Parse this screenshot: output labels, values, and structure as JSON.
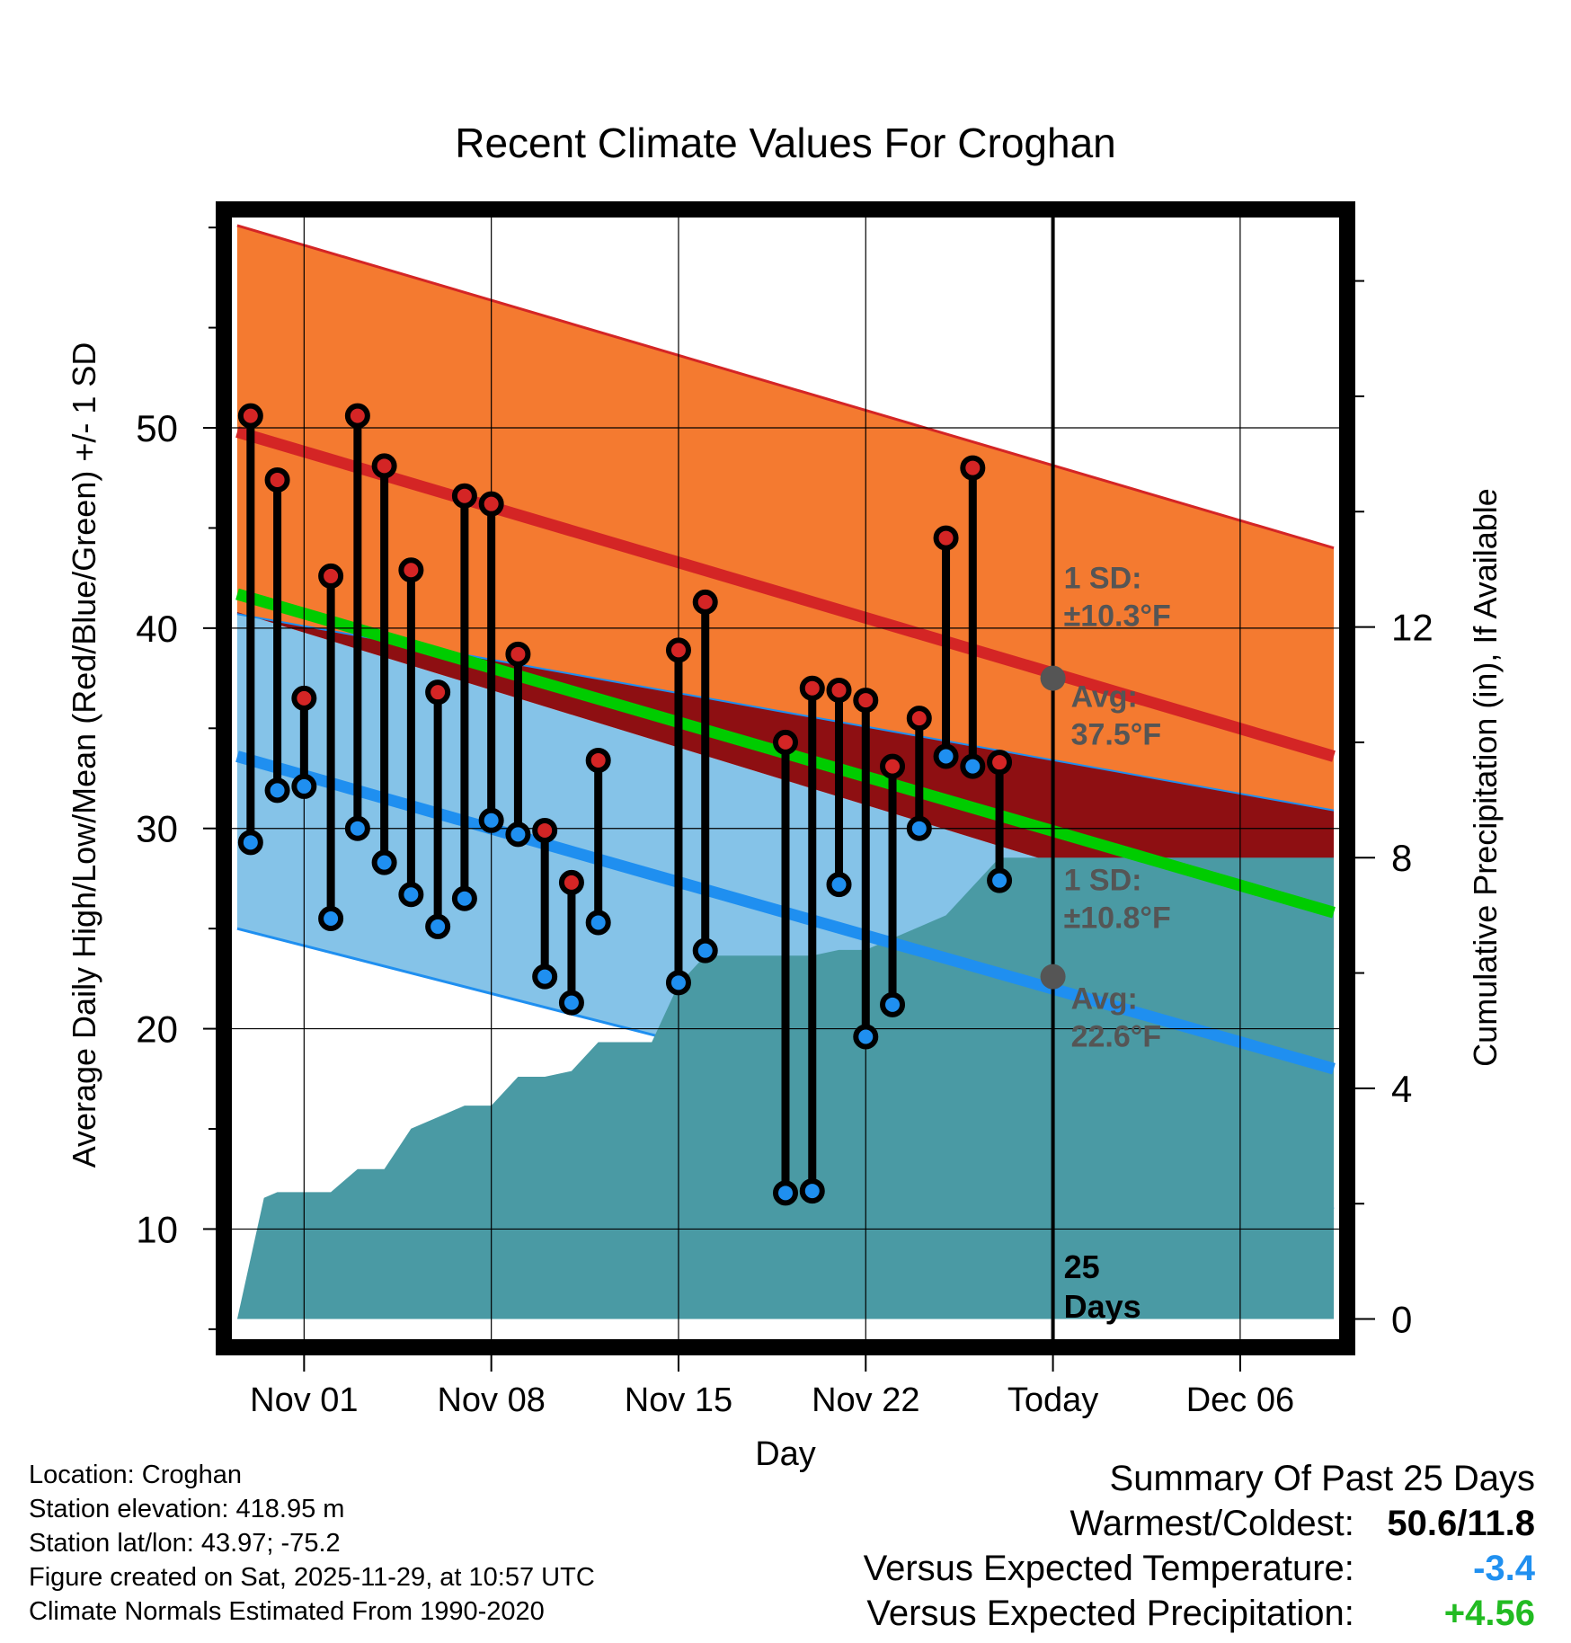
{
  "chart_data": {
    "type": "line",
    "title": "Recent Climate Values For Croghan",
    "xlabel": "Day",
    "ylabel": "Average Daily High/Low/Mean (Red/Blue/Green) +/- 1 SD",
    "y2label": "Cumulative Precipitation (in), If Available",
    "xlim": [
      -2.7,
      38.7
    ],
    "ylim": [
      4.5,
      60.5
    ],
    "y2lim": [
      -0.35,
      19.1
    ],
    "x_ticks": [
      {
        "x": 0,
        "label": "Nov 01"
      },
      {
        "x": 7,
        "label": "Nov 08"
      },
      {
        "x": 14,
        "label": "Nov 15"
      },
      {
        "x": 21,
        "label": "Nov 22"
      },
      {
        "x": 28,
        "label": "Today"
      },
      {
        "x": 35,
        "label": "Dec 06"
      }
    ],
    "y_ticks": [
      10,
      20,
      30,
      40,
      50
    ],
    "y2_ticks": [
      0,
      4,
      8,
      12
    ],
    "normals_x": [
      -2.5,
      38.5
    ],
    "normal_high": [
      49.8,
      33.6
    ],
    "normal_high_upper": [
      60.1,
      44.0
    ],
    "normal_high_lower": [
      40.7,
      30.9
    ],
    "normal_low": [
      33.6,
      18.0
    ],
    "normal_low_upper": [
      40.8,
      24.0
    ],
    "normal_low_lower": [
      25.0,
      11.0
    ],
    "normal_mean": [
      41.7,
      25.8
    ],
    "days": [
      -2,
      -1,
      0,
      1,
      2,
      3,
      4,
      5,
      6,
      7,
      8,
      9,
      10,
      11,
      14,
      15,
      18,
      19,
      20,
      21,
      22,
      23,
      24,
      25,
      26
    ],
    "highs": [
      50.6,
      47.4,
      36.5,
      42.6,
      50.6,
      48.1,
      42.9,
      36.8,
      46.6,
      46.2,
      38.7,
      29.9,
      27.3,
      33.4,
      38.9,
      41.3,
      34.3,
      37.0,
      36.9,
      36.4,
      33.1,
      35.5,
      44.5,
      48.0,
      33.3
    ],
    "lows": [
      29.3,
      31.9,
      32.1,
      25.5,
      30.0,
      28.3,
      26.7,
      25.1,
      26.5,
      30.4,
      29.7,
      22.6,
      21.3,
      25.3,
      22.3,
      23.9,
      11.8,
      11.9,
      27.2,
      19.6,
      21.2,
      30.0,
      33.6,
      33.1,
      27.4
    ],
    "precip_x": [
      -2.5,
      -1.5,
      -1,
      0,
      1,
      2,
      3,
      4,
      5,
      6,
      7,
      8,
      9,
      10,
      11,
      12,
      13,
      14,
      15,
      16,
      17,
      18,
      19,
      20,
      21,
      22,
      23,
      24,
      25,
      26,
      27,
      28,
      38.5
    ],
    "precip_cum": [
      0,
      2.1,
      2.2,
      2.2,
      2.2,
      2.6,
      2.6,
      3.3,
      3.5,
      3.7,
      3.7,
      4.2,
      4.2,
      4.3,
      4.8,
      4.8,
      4.8,
      5.8,
      6.3,
      6.3,
      6.3,
      6.3,
      6.3,
      6.4,
      6.4,
      6.6,
      6.8,
      7.0,
      7.5,
      8.0,
      8.0,
      8.0,
      8.0
    ],
    "today": {
      "x": 28,
      "avg_high": 37.5,
      "avg_low": 22.6,
      "sd_high_label": "1 SD:",
      "sd_high_value": "±10.3°F",
      "sd_low_label": "1 SD:",
      "sd_low_value": "±10.8°F",
      "avg_high_label": "Avg:",
      "avg_high_value": "37.5°F",
      "avg_low_label": "Avg:",
      "avg_low_value": "22.6°F",
      "days_count": "25",
      "days_label": "Days"
    },
    "colors": {
      "high_band": "#f47a30",
      "high_line": "#d42525",
      "low_band": "#85c3e8",
      "low_line": "#1f8ff0",
      "overlap": "#8e0f12",
      "mean": "#00cc00",
      "precip": "#4a9aa4",
      "high_dot": "#d42525",
      "low_dot": "#1f8ff0",
      "annotation": "#555555"
    }
  },
  "info": {
    "location": "Location: Croghan",
    "elevation": "Station elevation: 418.95 m",
    "latlon": "Station lat/lon: 43.97; -75.2",
    "created": "Figure created on Sat, 2025-11-29, at 10:57 UTC",
    "normals": "Climate Normals Estimated From 1990-2020"
  },
  "summary": {
    "title": "Summary Of Past 25 Days",
    "warm_cold_label": "Warmest/Coldest:",
    "warm_cold_value": "50.6/11.8",
    "temp_label": "Versus Expected Temperature:",
    "temp_value": "-3.4",
    "temp_color": "#2090f0",
    "precip_label": "Versus Expected Precipitation:",
    "precip_value": "+4.56",
    "precip_color": "#22bb22"
  }
}
